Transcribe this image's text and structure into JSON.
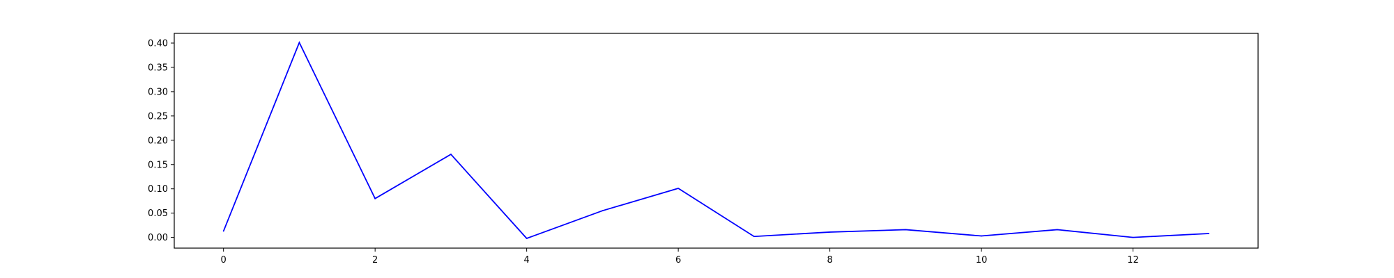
{
  "chart_data": {
    "type": "line",
    "title": "",
    "xlabel": "",
    "ylabel": "",
    "xlim": [
      -0.65,
      13.65
    ],
    "ylim": [
      -0.022,
      0.42
    ],
    "grid": false,
    "x_ticks": [
      0,
      2,
      4,
      6,
      8,
      10,
      12
    ],
    "x_tick_labels": [
      "0",
      "2",
      "4",
      "6",
      "8",
      "10",
      "12"
    ],
    "y_ticks": [
      0.0,
      0.05,
      0.1,
      0.15,
      0.2,
      0.25,
      0.3,
      0.35,
      0.4
    ],
    "y_tick_labels": [
      "0.00",
      "0.05",
      "0.10",
      "0.15",
      "0.20",
      "0.25",
      "0.30",
      "0.35",
      "0.40"
    ],
    "series": [
      {
        "color": "#0000ff",
        "x": [
          0,
          1,
          2,
          3,
          4,
          5,
          6,
          7,
          8,
          9,
          10,
          11,
          12,
          13
        ],
        "y": [
          0.013,
          0.401,
          0.08,
          0.171,
          -0.002,
          0.055,
          0.101,
          0.002,
          0.011,
          0.016,
          0.003,
          0.016,
          0.0,
          0.008
        ]
      }
    ]
  }
}
